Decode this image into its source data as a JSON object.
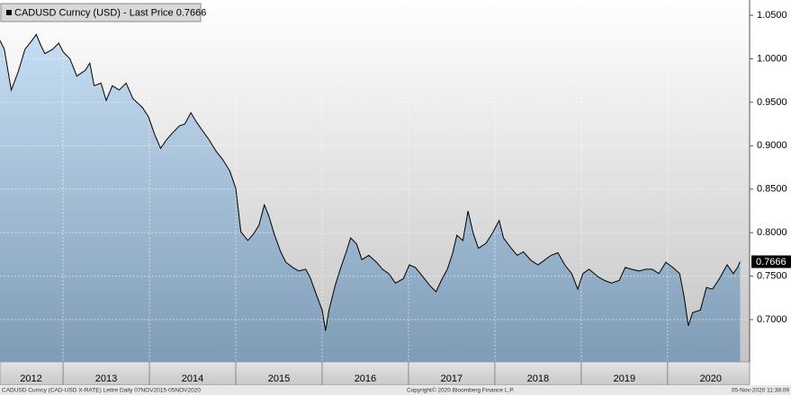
{
  "chart_data": {
    "type": "area",
    "title": "CADUSD Curncy (USD) - Last Price 0.7666",
    "footnote": "CADUSD Curncy (CAD-USD X-RATE) Lettre  Daily 07NOV2015-05NOV2020",
    "copyright": "Copyright© 2020 Bloomberg Finance L.P.",
    "timestamp": "05-Nov-2020 11:38:09",
    "x": [
      2012.27,
      2012.32,
      2012.4,
      2012.48,
      2012.56,
      2012.64,
      2012.69,
      2012.74,
      2012.79,
      2012.88,
      2012.95,
      2013.0,
      2013.08,
      2013.16,
      2013.26,
      2013.31,
      2013.36,
      2013.44,
      2013.5,
      2013.57,
      2013.65,
      2013.73,
      2013.81,
      2013.92,
      2013.99,
      2014.06,
      2014.13,
      2014.2,
      2014.27,
      2014.35,
      2014.41,
      2014.48,
      2014.54,
      2014.61,
      2014.69,
      2014.77,
      2014.85,
      2014.93,
      2015.0,
      2015.06,
      2015.14,
      2015.21,
      2015.27,
      2015.33,
      2015.38,
      2015.45,
      2015.52,
      2015.58,
      2015.66,
      2015.73,
      2015.81,
      2015.86,
      2015.94,
      2016.0,
      2016.04,
      2016.08,
      2016.15,
      2016.21,
      2016.28,
      2016.33,
      2016.4,
      2016.46,
      2016.54,
      2016.63,
      2016.7,
      2016.77,
      2016.85,
      2016.94,
      2017.01,
      2017.08,
      2017.17,
      2017.25,
      2017.32,
      2017.38,
      2017.45,
      2017.51,
      2017.56,
      2017.63,
      2017.69,
      2017.75,
      2017.81,
      2017.9,
      2017.98,
      2018.05,
      2018.1,
      2018.19,
      2018.26,
      2018.33,
      2018.42,
      2018.5,
      2018.57,
      2018.65,
      2018.73,
      2018.81,
      2018.89,
      2018.96,
      2019.02,
      2019.09,
      2019.2,
      2019.27,
      2019.35,
      2019.44,
      2019.51,
      2019.58,
      2019.67,
      2019.75,
      2019.82,
      2019.9,
      2019.98,
      2020.06,
      2020.14,
      2020.19,
      2020.24,
      2020.29,
      2020.38,
      2020.45,
      2020.52,
      2020.6,
      2020.69,
      2020.76,
      2020.81,
      2020.84
    ],
    "values": [
      1.021,
      1.011,
      0.964,
      0.985,
      1.011,
      1.021,
      1.028,
      1.016,
      1.006,
      1.011,
      1.018,
      1.008,
      1.0,
      0.98,
      0.987,
      0.995,
      0.969,
      0.972,
      0.952,
      0.969,
      0.964,
      0.972,
      0.954,
      0.944,
      0.933,
      0.913,
      0.897,
      0.907,
      0.915,
      0.923,
      0.925,
      0.938,
      0.928,
      0.918,
      0.907,
      0.894,
      0.884,
      0.871,
      0.851,
      0.801,
      0.791,
      0.799,
      0.809,
      0.832,
      0.82,
      0.797,
      0.778,
      0.766,
      0.76,
      0.756,
      0.758,
      0.749,
      0.727,
      0.711,
      0.687,
      0.711,
      0.739,
      0.758,
      0.778,
      0.794,
      0.787,
      0.769,
      0.774,
      0.766,
      0.758,
      0.753,
      0.742,
      0.747,
      0.763,
      0.76,
      0.749,
      0.739,
      0.732,
      0.745,
      0.758,
      0.776,
      0.797,
      0.791,
      0.825,
      0.799,
      0.782,
      0.788,
      0.801,
      0.814,
      0.794,
      0.782,
      0.774,
      0.778,
      0.768,
      0.763,
      0.768,
      0.774,
      0.777,
      0.763,
      0.753,
      0.735,
      0.753,
      0.758,
      0.749,
      0.745,
      0.742,
      0.745,
      0.76,
      0.758,
      0.756,
      0.758,
      0.758,
      0.753,
      0.766,
      0.76,
      0.753,
      0.727,
      0.693,
      0.708,
      0.711,
      0.737,
      0.735,
      0.747,
      0.763,
      0.753,
      0.76,
      0.7666
    ],
    "color": "#000000",
    "last_value": 0.7666,
    "xlim": [
      2012.27,
      2020.95
    ],
    "ylim": [
      0.6515,
      1.0676
    ],
    "xticks": [
      {
        "value": 2012.63,
        "label": "2012"
      },
      {
        "value": 2013.5,
        "label": "2013"
      },
      {
        "value": 2014.5,
        "label": "2014"
      },
      {
        "value": 2015.5,
        "label": "2015"
      },
      {
        "value": 2016.5,
        "label": "2016"
      },
      {
        "value": 2017.5,
        "label": "2017"
      },
      {
        "value": 2018.5,
        "label": "2018"
      },
      {
        "value": 2019.5,
        "label": "2019"
      },
      {
        "value": 2020.5,
        "label": "2020"
      }
    ],
    "xgrid": [
      2013,
      2014,
      2015,
      2016,
      2017,
      2018,
      2019,
      2020
    ],
    "yticks": [
      {
        "value": 0.7,
        "label": "0.7000"
      },
      {
        "value": 0.75,
        "label": "0.7500"
      },
      {
        "value": 0.8,
        "label": "0.8000"
      },
      {
        "value": 0.85,
        "label": "0.8500"
      },
      {
        "value": 0.9,
        "label": "0.9000"
      },
      {
        "value": 0.95,
        "label": "0.9500"
      },
      {
        "value": 1.0,
        "label": "1.0000"
      },
      {
        "value": 1.05,
        "label": "1.0500"
      }
    ],
    "grid": true
  }
}
